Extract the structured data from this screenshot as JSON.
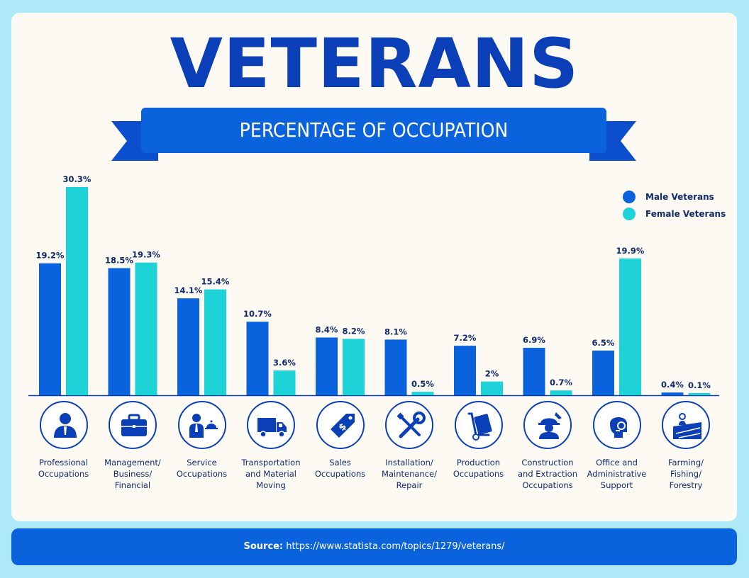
{
  "header": {
    "title": "VETERANS",
    "subtitle": "PERCENTAGE OF OCCUPATION"
  },
  "legend": {
    "male": "Male Veterans",
    "female": "Female Veterans"
  },
  "colors": {
    "male": "#0a63dd",
    "female": "#1dd3d8",
    "title": "#0b3fb8",
    "text": "#102a6e"
  },
  "chart_data": {
    "type": "bar",
    "title": "VETERANS",
    "subtitle": "PERCENTAGE OF OCCUPATION",
    "categories": [
      "Professional Occupations",
      "Management/ Business/ Financial",
      "Service Occupations",
      "Transportation and Material Moving",
      "Sales Occupations",
      "Installation/ Maintenance/ Repair",
      "Production Occupations",
      "Construction and Extraction Occupations",
      "Office and Administrative Support",
      "Farming/ Fishing/ Forestry"
    ],
    "series": [
      {
        "name": "Male Veterans",
        "values": [
          19.2,
          18.5,
          14.1,
          10.7,
          8.4,
          8.1,
          7.2,
          6.9,
          6.5,
          0.4
        ],
        "labels": [
          "19.2%",
          "18.5%",
          "14.1%",
          "10.7%",
          "8.4%",
          "8.1%",
          "7.2%",
          "6.9%",
          "6.5%",
          "0.4%"
        ]
      },
      {
        "name": "Female Veterans",
        "values": [
          30.3,
          19.3,
          15.4,
          3.6,
          8.2,
          0.5,
          2,
          0.7,
          19.9,
          0.1
        ],
        "labels": [
          "30.3%",
          "19.3%",
          "15.4%",
          "3.6%",
          "8.2%",
          "0.5%",
          "2%",
          "0.7%",
          "19.9%",
          "0.1%"
        ]
      }
    ],
    "ylim": [
      0,
      30.3
    ],
    "legend_position": "top-right",
    "grid": false
  },
  "category_labels": [
    [
      "Professional",
      "Occupations"
    ],
    [
      "Management/",
      "Business/",
      "Financial"
    ],
    [
      "Service",
      "Occupations"
    ],
    [
      "Transportation",
      "and Material",
      "Moving"
    ],
    [
      "Sales",
      "Occupations"
    ],
    [
      "Installation/",
      "Maintenance/",
      "Repair"
    ],
    [
      "Production",
      "Occupations"
    ],
    [
      "Construction",
      "and Extraction",
      "Occupations"
    ],
    [
      "Office and",
      "Administrative",
      "Support"
    ],
    [
      "Farming/",
      "Fishing/",
      "Forestry"
    ]
  ],
  "category_icons": [
    "professional-person-icon",
    "briefcase-icon",
    "waiter-icon",
    "truck-icon",
    "price-tag-icon",
    "wrench-screwdriver-icon",
    "hand-truck-icon",
    "construction-worker-icon",
    "headset-operator-icon",
    "farm-field-icon"
  ],
  "footer": {
    "source_label": "Source:",
    "source_url": "https://www.statista.com/topics/1279/veterans/"
  }
}
